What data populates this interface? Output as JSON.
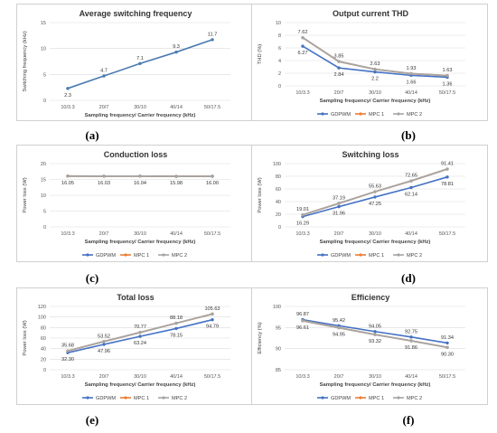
{
  "categories": [
    "10/3.3",
    "20/7",
    "30/10",
    "40/14",
    "50/17.5"
  ],
  "series_colors": {
    "GDPWM": "#4472c4",
    "MPC 1": "#ed7d31",
    "MPC 2": "#a5a5a5"
  },
  "chart_data": [
    {
      "type": "line",
      "title": "Average switching frequency",
      "xlabel": "Sampling frequency/ Carrier frequency (kHz)",
      "ylabel": "Switching frequency (kHz)",
      "categories": [
        "10/3.3",
        "20/7",
        "30/10",
        "40/14",
        "50/17.5"
      ],
      "ylim": [
        0,
        15
      ],
      "yticks": [
        0,
        5,
        10,
        15
      ],
      "legend": "none",
      "series": [
        {
          "name": "",
          "values": [
            2.3,
            4.7,
            7.1,
            9.3,
            11.7
          ]
        }
      ],
      "labels": [
        {
          "text": "2.3"
        },
        {
          "text": "4.7"
        },
        {
          "text": "7.1"
        },
        {
          "text": "9.3"
        },
        {
          "text": "11.7"
        }
      ],
      "caption": "(a)"
    },
    {
      "type": "line",
      "title": "Output current THD",
      "xlabel": "Sampling frequency/ Carrier frequency (kHz)",
      "ylabel": "THD (%)",
      "categories": [
        "10/3.3",
        "20/7",
        "30/10",
        "40/14",
        "50/17.5"
      ],
      "ylim": [
        0,
        10
      ],
      "yticks": [
        0,
        2,
        4,
        6,
        8,
        10
      ],
      "legend": "bottom",
      "series": [
        {
          "name": "GDPWM",
          "values": [
            6.27,
            2.84,
            2.2,
            1.66,
            1.36
          ]
        },
        {
          "name": "MPC 1",
          "values": [
            7.62,
            3.85,
            2.63,
            1.93,
            1.63
          ]
        },
        {
          "name": "MPC 2",
          "values": [
            7.62,
            3.85,
            2.63,
            1.93,
            1.63
          ]
        }
      ],
      "labels": [
        {
          "text": "7.62"
        },
        {
          "text": "6.27"
        },
        {
          "text": "3.85"
        },
        {
          "text": "2.84"
        },
        {
          "text": "2.63"
        },
        {
          "text": "2.2"
        },
        {
          "text": "1.93"
        },
        {
          "text": "1.66"
        },
        {
          "text": "1.63"
        },
        {
          "text": "1.36"
        }
      ],
      "caption": "(b)"
    },
    {
      "type": "line",
      "title": "Conduction loss",
      "xlabel": "Sampling frequency/ Carrier frequency (kHz)",
      "ylabel": "Power loss (W)",
      "categories": [
        "10/3.3",
        "20/7",
        "30/10",
        "40/14",
        "50/17.5"
      ],
      "ylim": [
        0,
        20
      ],
      "yticks": [
        0,
        5,
        10,
        15,
        20
      ],
      "legend": "bottom",
      "series": [
        {
          "name": "GDPWM",
          "values": [
            16.05,
            16.03,
            16.04,
            15.98,
            16.0
          ]
        },
        {
          "name": "MPC 1",
          "values": [
            16.05,
            16.03,
            16.04,
            15.98,
            16.0
          ]
        },
        {
          "name": "MPC 2",
          "values": [
            16.05,
            16.03,
            16.04,
            15.98,
            16.0
          ]
        }
      ],
      "labels": [
        {
          "text": "16.05"
        },
        {
          "text": "16.03"
        },
        {
          "text": "16.04"
        },
        {
          "text": "15.98"
        },
        {
          "text": "16.00"
        }
      ],
      "caption": "(c)"
    },
    {
      "type": "line",
      "title": "Switching loss",
      "xlabel": "Sampling frequency/ Carrier frequency (kHz)",
      "ylabel": "Power loss (W)",
      "categories": [
        "10/3.3",
        "20/7",
        "30/10",
        "40/14",
        "50/17.5"
      ],
      "ylim": [
        0,
        100
      ],
      "yticks": [
        0,
        20,
        40,
        60,
        80,
        100
      ],
      "legend": "bottom",
      "series": [
        {
          "name": "GDPWM",
          "values": [
            16.29,
            31.96,
            47.25,
            62.14,
            78.81
          ]
        },
        {
          "name": "MPC 1",
          "values": [
            19.01,
            37.19,
            55.63,
            72.65,
            91.41
          ]
        },
        {
          "name": "MPC 2",
          "values": [
            19.01,
            37.19,
            55.63,
            72.65,
            91.41
          ]
        }
      ],
      "labels": [
        {
          "text": "19.01"
        },
        {
          "text": "16.29"
        },
        {
          "text": "37.19"
        },
        {
          "text": "31.96"
        },
        {
          "text": "55.63"
        },
        {
          "text": "47.25"
        },
        {
          "text": "72.65"
        },
        {
          "text": "62.14"
        },
        {
          "text": "91.41"
        },
        {
          "text": "78.81"
        }
      ],
      "caption": "(d)"
    },
    {
      "type": "line",
      "title": "Total loss",
      "xlabel": "Sampling frequency/ Carrier frequency (kHz)",
      "ylabel": "Power loss (W)",
      "categories": [
        "10/3.3",
        "20/7",
        "30/10",
        "40/14",
        "50/17.5"
      ],
      "ylim": [
        0,
        120
      ],
      "yticks": [
        0,
        20,
        40,
        60,
        80,
        100,
        120
      ],
      "legend": "bottom",
      "series": [
        {
          "name": "GDPWM",
          "values": [
            32.3,
            47.96,
            63.24,
            78.15,
            94.79
          ]
        },
        {
          "name": "MPC 1",
          "values": [
            35.68,
            53.52,
            70.77,
            88.18,
            105.63
          ]
        },
        {
          "name": "MPC 2",
          "values": [
            35.68,
            53.52,
            70.77,
            88.18,
            105.63
          ]
        }
      ],
      "labels": [
        {
          "text": "35.68"
        },
        {
          "text": "32.30"
        },
        {
          "text": "53.52"
        },
        {
          "text": "47.96"
        },
        {
          "text": "70.77"
        },
        {
          "text": "63.24"
        },
        {
          "text": "88.18"
        },
        {
          "text": "78.15"
        },
        {
          "text": "105.63"
        },
        {
          "text": "94.79"
        }
      ],
      "caption": "(e)"
    },
    {
      "type": "line",
      "title": "Efficiency",
      "xlabel": "Sampling frequency/ Carrier frequency (kHz)",
      "ylabel": "Efficiency (%)",
      "categories": [
        "10/3.3",
        "20/7",
        "30/10",
        "40/14",
        "50/17.5"
      ],
      "ylim": [
        85,
        100
      ],
      "yticks": [
        85,
        90,
        95,
        100
      ],
      "legend": "bottom",
      "series": [
        {
          "name": "GDPWM",
          "values": [
            96.87,
            95.42,
            94.05,
            92.75,
            91.34
          ]
        },
        {
          "name": "MPC 1",
          "values": [
            96.61,
            94.95,
            93.32,
            91.86,
            90.3
          ]
        },
        {
          "name": "MPC 2",
          "values": [
            96.61,
            94.95,
            93.32,
            91.86,
            90.3
          ]
        }
      ],
      "labels": [
        {
          "text": "96.87"
        },
        {
          "text": "96.61"
        },
        {
          "text": "95.42"
        },
        {
          "text": "94.95"
        },
        {
          "text": "94.05"
        },
        {
          "text": "93.32"
        },
        {
          "text": "92.75"
        },
        {
          "text": "91.86"
        },
        {
          "text": "91.34"
        },
        {
          "text": "90.30"
        }
      ],
      "caption": "(f)"
    }
  ]
}
